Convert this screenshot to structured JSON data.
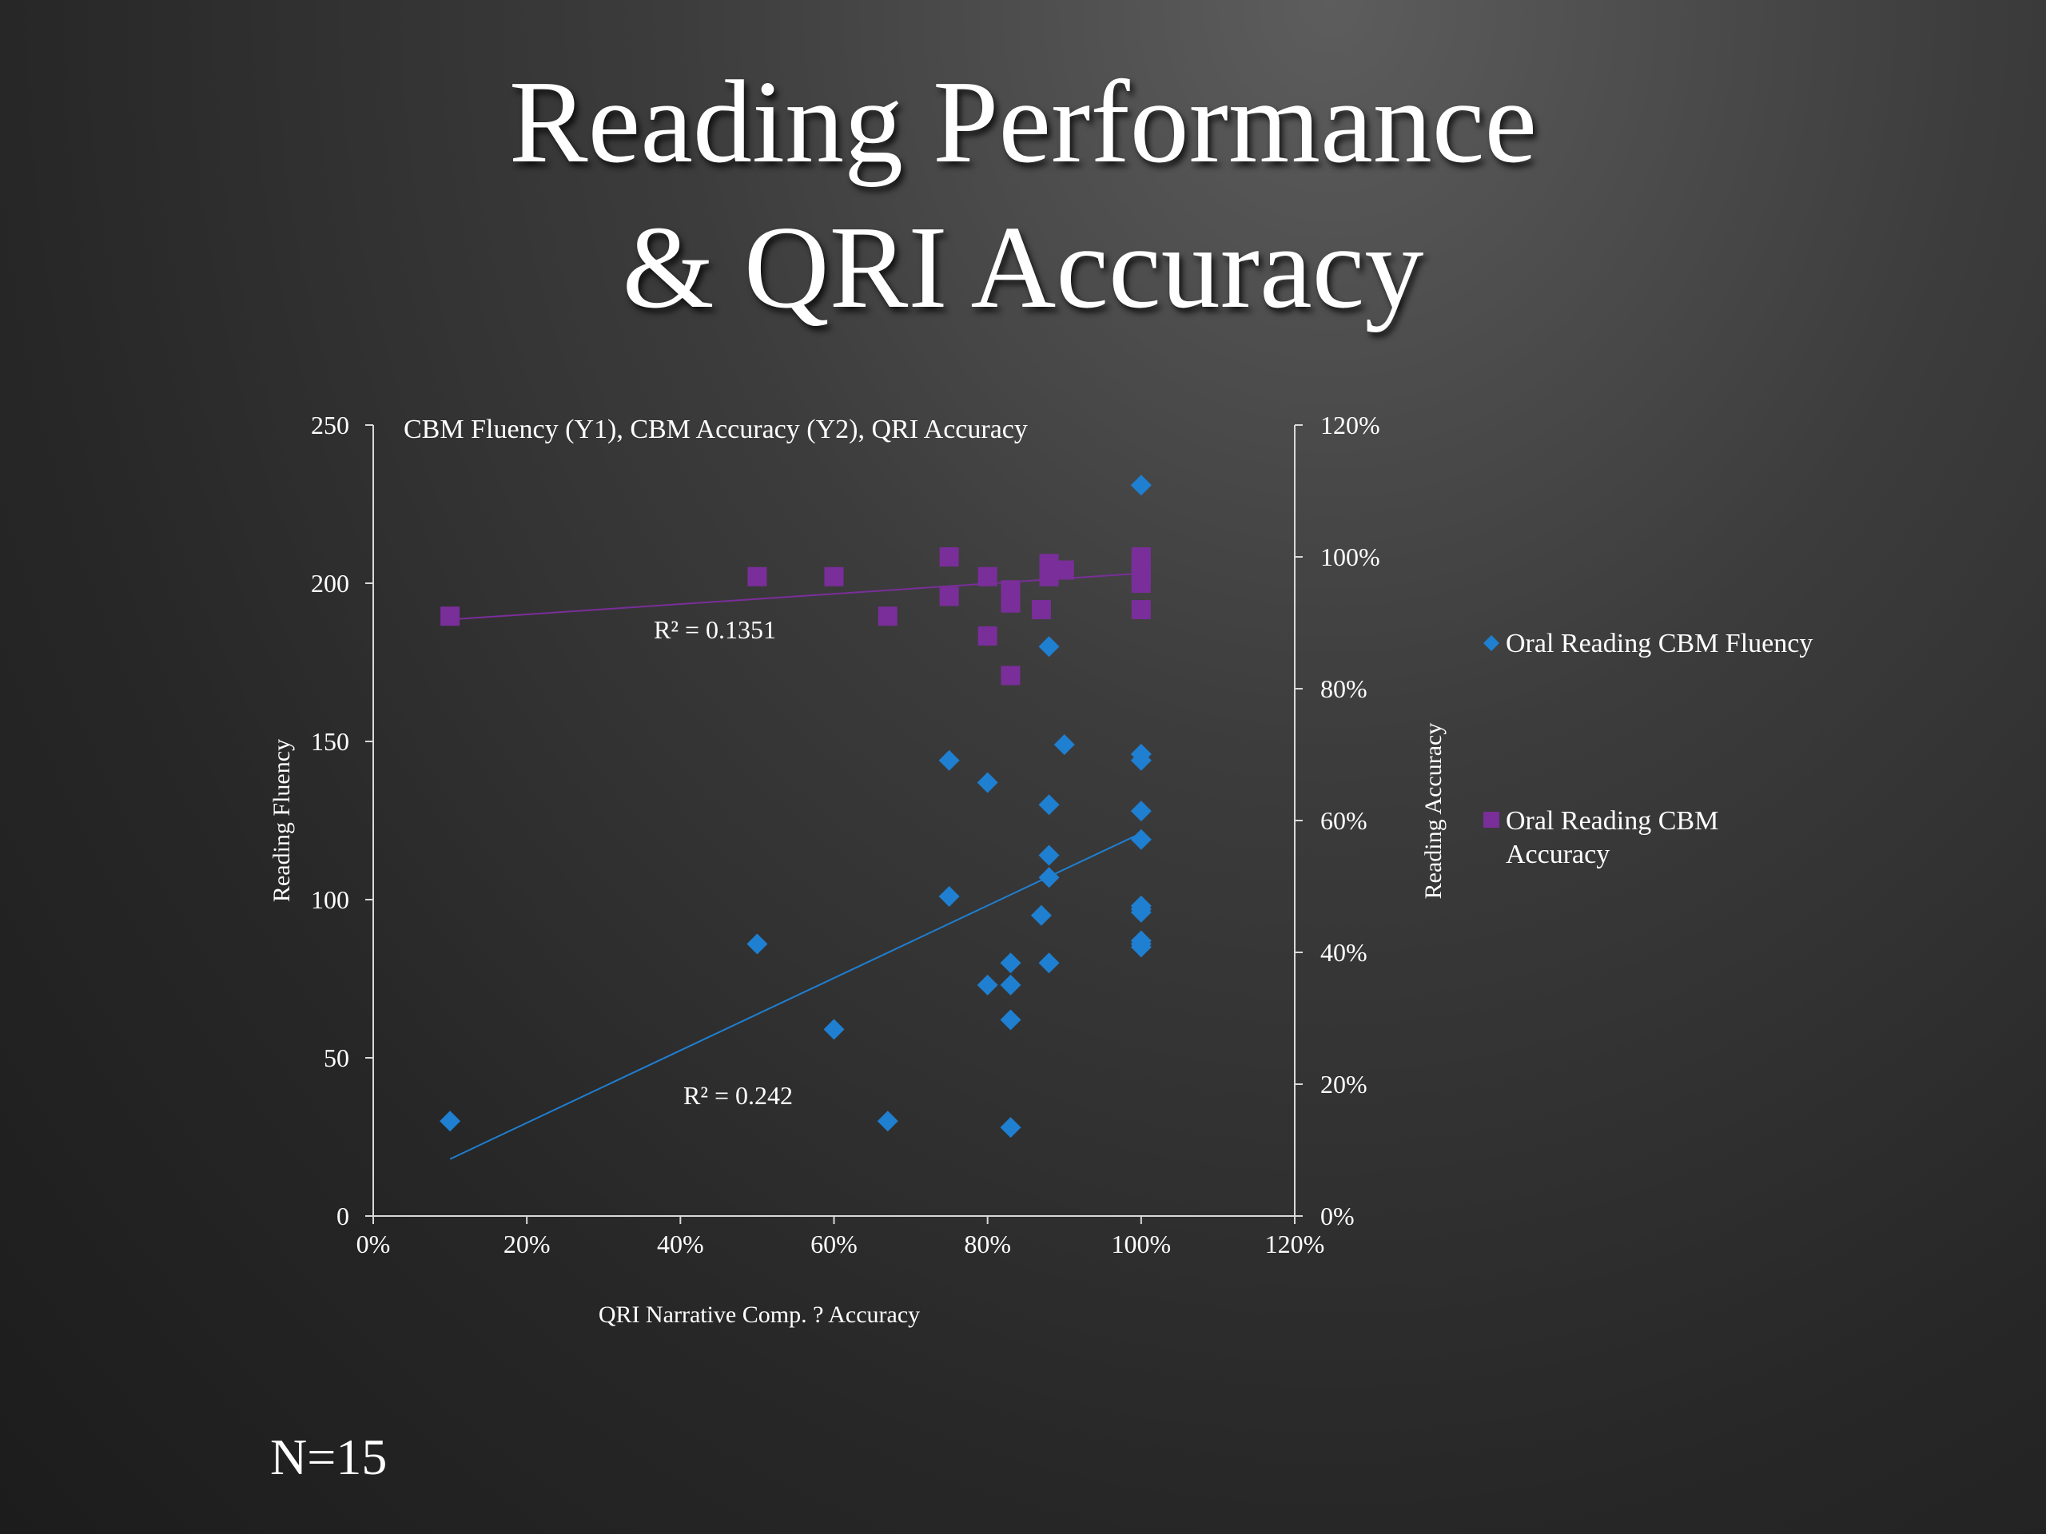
{
  "slide": {
    "title_line1": "Reading Performance",
    "title_line2": "& QRI Accuracy",
    "footnote": "N=15"
  },
  "colors": {
    "fluency": "#1f7fd1",
    "accuracy": "#7a2e9a",
    "text": "#ffffff",
    "axis": "#d9d9d9"
  },
  "chart_data": {
    "type": "scatter",
    "title": "CBM Fluency (Y1), CBM Accuracy (Y2), QRI Accuracy",
    "xlabel": "QRI Narrative Comp. ? Accuracy",
    "ylabel": "Reading Fluency",
    "y2label": "Reading Accuracy",
    "xlim": [
      0,
      1.2
    ],
    "ylim": [
      0,
      250
    ],
    "y2lim": [
      0,
      1.2
    ],
    "x_ticks": [
      "0%",
      "20%",
      "40%",
      "60%",
      "80%",
      "100%",
      "120%"
    ],
    "y_ticks": [
      "0",
      "50",
      "100",
      "150",
      "200",
      "250"
    ],
    "y2_ticks": [
      "0%",
      "20%",
      "40%",
      "60%",
      "80%",
      "100%",
      "120%"
    ],
    "legend_position": "right",
    "grid": false,
    "series": [
      {
        "name": "Oral Reading CBM Fluency",
        "axis": "y1",
        "marker": "diamond",
        "x": [
          0.1,
          0.5,
          0.6,
          0.67,
          0.75,
          0.75,
          0.8,
          0.8,
          0.83,
          0.83,
          0.83,
          0.83,
          0.87,
          0.88,
          0.88,
          0.88,
          0.88,
          0.88,
          0.9,
          1.0,
          1.0,
          1.0,
          1.0,
          1.0,
          1.0,
          1.0,
          1.0,
          1.0,
          1.0,
          1.0
        ],
        "values": [
          30,
          86,
          59,
          30,
          144,
          101,
          137,
          73,
          80,
          73,
          62,
          28,
          95,
          180,
          130,
          114,
          107,
          80,
          149,
          231,
          146,
          144,
          128,
          119,
          98,
          96,
          87,
          85,
          97,
          86
        ],
        "trendline": {
          "label": "R² = 0.242",
          "x": [
            0.1,
            1.0
          ],
          "values": [
            18,
            121
          ]
        }
      },
      {
        "name": "Oral Reading CBM Accuracy",
        "axis": "y2",
        "marker": "square",
        "x": [
          0.1,
          0.5,
          0.6,
          0.67,
          0.75,
          0.75,
          0.8,
          0.8,
          0.83,
          0.83,
          0.83,
          0.87,
          0.88,
          0.88,
          0.88,
          0.9,
          1.0,
          1.0,
          1.0,
          1.0,
          1.0,
          1.0
        ],
        "values": [
          0.91,
          0.97,
          0.97,
          0.91,
          1.0,
          0.94,
          0.97,
          0.88,
          0.95,
          0.93,
          0.82,
          0.92,
          0.99,
          0.97,
          0.98,
          0.98,
          1.0,
          0.99,
          0.98,
          0.97,
          0.96,
          0.92
        ],
        "trendline": {
          "label": "R² = 0.1351",
          "x": [
            0.1,
            1.0
          ],
          "values": [
            0.905,
            0.975
          ]
        }
      }
    ]
  }
}
